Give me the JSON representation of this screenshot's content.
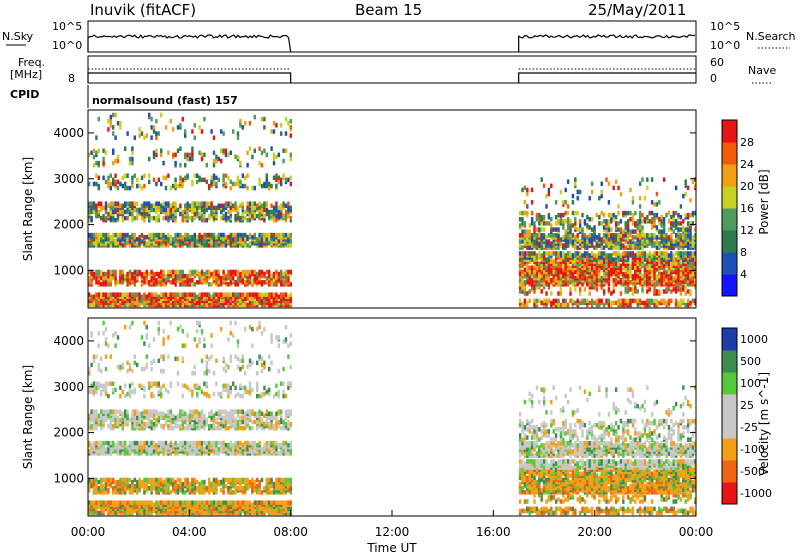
{
  "header": {
    "station": "Inuvik (fitACF)",
    "beam": "Beam 15",
    "date": "25/May/2011"
  },
  "panel_labels": {
    "nsky": "N.Sky",
    "nsky_ticks": [
      "10^5",
      "10^0"
    ],
    "nsearch": "N.Search",
    "nsearch_ticks": [
      "10^5",
      "10^0"
    ],
    "freq": "Freq.",
    "freq_unit": "[MHz]",
    "freq_tick": "8",
    "nave": "Nave",
    "nave_ticks": [
      "60",
      "0"
    ],
    "cpid": "CPID",
    "cpid_text": "normalsound (fast) 157"
  },
  "colors": {
    "power": [
      "#1414ff",
      "#1f4fb4",
      "#2e7a4c",
      "#4f9a5c",
      "#c8d21e",
      "#f0a014",
      "#f05a0a",
      "#e61414"
    ],
    "velocity": [
      "#e61414",
      "#f06414",
      "#f5a014",
      "#c8c8c8",
      "#c8c8c8",
      "#55c83c",
      "#3c8c50",
      "#1e3caa"
    ]
  },
  "chart_data": [
    {
      "type": "heatmap",
      "title": "Power",
      "xlabel": "Time UT",
      "ylabel": "Slant Range [km]",
      "x_ticks": [
        "00:00",
        "04:00",
        "08:00",
        "12:00",
        "16:00",
        "20:00",
        "00:00"
      ],
      "xlim_hours": [
        0,
        24
      ],
      "y_ticks": [
        "1000",
        "2000",
        "3000",
        "4000"
      ],
      "ylim": [
        180,
        4500
      ],
      "colorbar_label": "Power [dB]",
      "colorbar_ticks": [
        "4",
        "8",
        "12",
        "16",
        "20",
        "24",
        "28"
      ],
      "clim": [
        0,
        32
      ],
      "data_periods_hours": [
        [
          0,
          8
        ],
        [
          17,
          24
        ]
      ]
    },
    {
      "type": "heatmap",
      "title": "Velocity",
      "xlabel": "Time UT",
      "ylabel": "Slant Range [km]",
      "x_ticks": [
        "00:00",
        "04:00",
        "08:00",
        "12:00",
        "16:00",
        "20:00",
        "00:00"
      ],
      "xlim_hours": [
        0,
        24
      ],
      "y_ticks": [
        "1000",
        "2000",
        "3000",
        "4000"
      ],
      "ylim": [
        180,
        4500
      ],
      "colorbar_label": "Velocity [m s^-1]",
      "colorbar_ticks": [
        "-1000",
        "-500",
        "-100",
        "-25",
        "25",
        "100",
        "500",
        "1000"
      ],
      "data_periods_hours": [
        [
          0,
          8
        ],
        [
          17,
          24
        ]
      ]
    }
  ]
}
